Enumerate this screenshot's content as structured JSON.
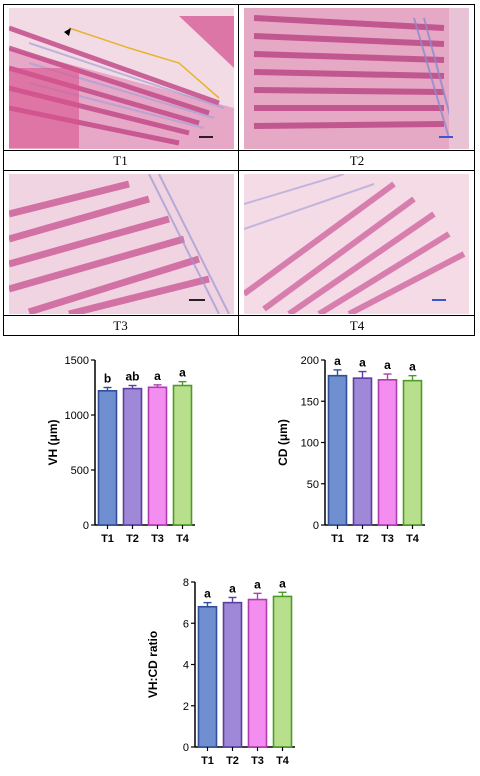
{
  "panels": [
    {
      "label": "T1"
    },
    {
      "label": "T2"
    },
    {
      "label": "T3"
    },
    {
      "label": "T4"
    }
  ],
  "chart_data": [
    {
      "type": "bar",
      "categories": [
        "T1",
        "T2",
        "T3",
        "T4"
      ],
      "values": [
        1220,
        1240,
        1252,
        1268
      ],
      "errors": [
        30,
        28,
        22,
        35
      ],
      "significance": [
        "b",
        "ab",
        "a",
        "a"
      ],
      "ylabel": "VH (μm)",
      "xlabel": "",
      "ylim": [
        0,
        1500
      ],
      "yticks": [
        0,
        500,
        1000,
        1500
      ],
      "colors": [
        "#6f8fd0",
        "#9f88d8",
        "#f38ef0",
        "#b8e08c"
      ],
      "edge_colors": [
        "#2f4f9a",
        "#5b3fa0",
        "#b03cb0",
        "#4e9a2a"
      ],
      "grid": false
    },
    {
      "type": "bar",
      "categories": [
        "T1",
        "T2",
        "T3",
        "T4"
      ],
      "values": [
        181,
        178,
        176,
        175
      ],
      "errors": [
        7,
        8,
        7,
        6
      ],
      "significance": [
        "a",
        "a",
        "a",
        "a"
      ],
      "ylabel": "CD (μm)",
      "xlabel": "",
      "ylim": [
        0,
        200
      ],
      "yticks": [
        0,
        50,
        100,
        150,
        200
      ],
      "colors": [
        "#6f8fd0",
        "#9f88d8",
        "#f38ef0",
        "#b8e08c"
      ],
      "edge_colors": [
        "#2f4f9a",
        "#5b3fa0",
        "#b03cb0",
        "#4e9a2a"
      ],
      "grid": false
    },
    {
      "type": "bar",
      "categories": [
        "T1",
        "T2",
        "T3",
        "T4"
      ],
      "values": [
        6.8,
        7.0,
        7.15,
        7.3
      ],
      "errors": [
        0.2,
        0.25,
        0.3,
        0.2
      ],
      "significance": [
        "a",
        "a",
        "a",
        "a"
      ],
      "ylabel": "VH:CD ratio",
      "xlabel": "",
      "ylim": [
        0,
        8
      ],
      "yticks": [
        0,
        2,
        4,
        6,
        8
      ],
      "colors": [
        "#6f8fd0",
        "#9f88d8",
        "#f38ef0",
        "#b8e08c"
      ],
      "edge_colors": [
        "#2f4f9a",
        "#5b3fa0",
        "#b03cb0",
        "#4e9a2a"
      ],
      "grid": false
    }
  ]
}
